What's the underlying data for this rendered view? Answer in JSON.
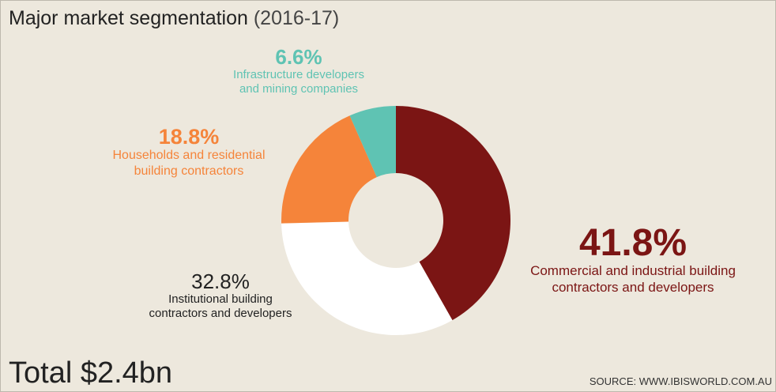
{
  "chart_data": {
    "type": "donut",
    "title": "Major market segmentation",
    "subtitle": "(2016-17)",
    "categories": [
      "Commercial and industrial building contractors and developers",
      "Institutional building contractors and developers",
      "Households and residential building contractors",
      "Infrastructure developers and mining companies"
    ],
    "values": [
      41.8,
      32.8,
      18.8,
      6.6
    ],
    "value_labels": [
      "41.8%",
      "32.8%",
      "18.8%",
      "6.6%"
    ],
    "colors": [
      "#7b1514",
      "#ffffff",
      "#f5843a",
      "#5fc3b3"
    ],
    "label_colors": [
      "#7b1514",
      "#222222",
      "#f5843a",
      "#5fc3b3"
    ],
    "total": "Total $2.4bn",
    "source": "SOURCE: WWW.IBISWORLD.COM.AU"
  }
}
